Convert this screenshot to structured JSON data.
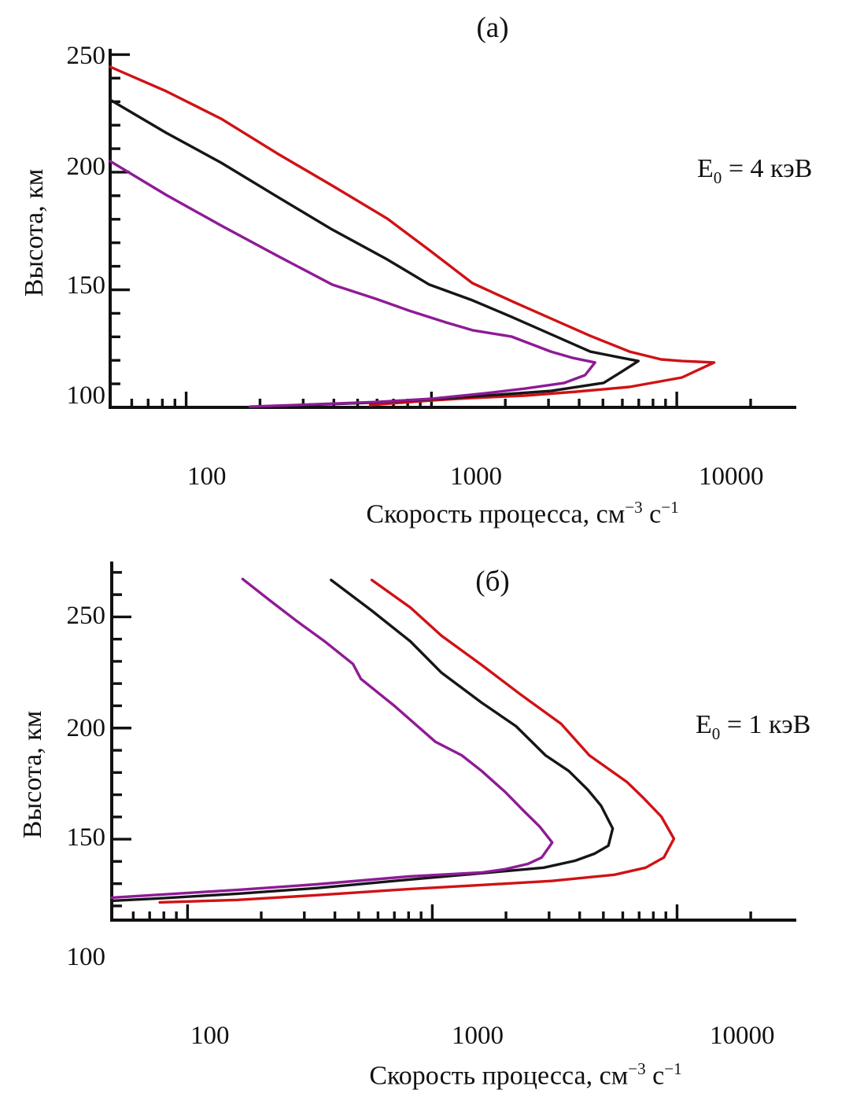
{
  "figure": {
    "background": "#ffffff",
    "axis_color": "#111111",
    "ylabel": "Высота, км",
    "xlabel": {
      "prefix": "Скорость процесса, см",
      "sup1": "−3",
      "mid": " с",
      "sup2": "−1"
    },
    "panels": [
      {
        "id": "a",
        "title": "(а)",
        "annotation": {
          "prefix": "E",
          "sub": "0",
          "rest": " = 4 кэВ"
        },
        "x_tick_labels": [
          "100",
          "1000",
          "10000"
        ],
        "y_tick_labels": [
          "250",
          "200",
          "150",
          "100"
        ]
      },
      {
        "id": "b",
        "title": "(б)",
        "annotation": {
          "prefix": "E",
          "sub": "0",
          "rest": " = 1 кэВ"
        },
        "x_tick_labels": [
          "100",
          "1000",
          "10000"
        ],
        "y_tick_labels": [
          "250",
          "200",
          "150",
          "100"
        ]
      }
    ]
  },
  "chart_data": [
    {
      "type": "line",
      "panel": "(а)",
      "annotation": "E0 = 4 кэВ",
      "xlabel": "Скорость процесса, см−3 с−1",
      "ylabel": "Высота, км",
      "x_scale": "log",
      "xlim": [
        49,
        30700
      ],
      "ylim": [
        100,
        252.5
      ],
      "x_ticks_major": [
        100,
        1000,
        10000
      ],
      "x_ticks_minor": [
        60,
        70,
        80,
        90,
        200,
        300,
        400,
        500,
        600,
        700,
        800,
        900,
        2000,
        3000,
        4000,
        5000,
        6000,
        7000,
        8000,
        9000,
        20000
      ],
      "y_ticks_major": [
        100,
        150,
        200,
        250
      ],
      "y_ticks_minor": [
        110,
        120,
        130,
        140,
        160,
        170,
        180,
        190,
        210,
        220,
        230,
        240
      ],
      "grid": false,
      "legend": "none",
      "series": [
        {
          "name": "red-curve",
          "color": "#d01215",
          "points": [
            [
              49,
              244.8
            ],
            [
              83,
              234.4
            ],
            [
              139,
              222.7
            ],
            [
              235,
              208.0
            ],
            [
              394,
              194.3
            ],
            [
              660,
              180.3
            ],
            [
              980,
              166.9
            ],
            [
              1470,
              152.8
            ],
            [
              2120,
              145.2
            ],
            [
              3070,
              137.8
            ],
            [
              4440,
              130.4
            ],
            [
              6420,
              123.7
            ],
            [
              8630,
              120.4
            ],
            [
              10500,
              119.7
            ],
            [
              14200,
              119.1
            ],
            [
              10500,
              112.7
            ],
            [
              6420,
              108.7
            ],
            [
              3910,
              106.7
            ],
            [
              2410,
              105.0
            ],
            [
              1470,
              104.0
            ],
            [
              1010,
              103.0
            ],
            [
              755,
              102.0
            ],
            [
              563,
              101.0
            ]
          ]
        },
        {
          "name": "black-curve",
          "color": "#161616",
          "points": [
            [
              49,
              230.8
            ],
            [
              83,
              216.7
            ],
            [
              139,
              204.0
            ],
            [
              235,
              189.6
            ],
            [
              394,
              175.6
            ],
            [
              660,
              162.9
            ],
            [
              980,
              152.2
            ],
            [
              1470,
              145.5
            ],
            [
              2120,
              138.5
            ],
            [
              3070,
              131.1
            ],
            [
              4440,
              123.7
            ],
            [
              5950,
              121.1
            ],
            [
              6970,
              119.7
            ],
            [
              5950,
              115.1
            ],
            [
              5030,
              110.4
            ],
            [
              3070,
              107.0
            ],
            [
              1870,
              105.4
            ],
            [
              1090,
              103.7
            ],
            [
              563,
              102.0
            ],
            [
              298,
              101.0
            ]
          ]
        },
        {
          "name": "purple-curve",
          "color": "#8e1b96",
          "points": [
            [
              49,
              204.7
            ],
            [
              83,
              190.3
            ],
            [
              139,
              177.3
            ],
            [
              235,
              164.5
            ],
            [
              394,
              152.2
            ],
            [
              592,
              146.2
            ],
            [
              813,
              141.1
            ],
            [
              1150,
              136.1
            ],
            [
              1470,
              132.8
            ],
            [
              2120,
              130.1
            ],
            [
              3070,
              123.7
            ],
            [
              3740,
              121.1
            ],
            [
              4640,
              119.1
            ],
            [
              4230,
              113.7
            ],
            [
              3480,
              110.4
            ],
            [
              2410,
              108.0
            ],
            [
              1660,
              106.0
            ],
            [
              1010,
              103.7
            ],
            [
              605,
              102.3
            ],
            [
              336,
              101.3
            ],
            [
              182,
              100.3
            ]
          ]
        }
      ]
    },
    {
      "type": "line",
      "panel": "(б)",
      "annotation": "E0 = 1 кэВ",
      "xlabel": "Скорость процесса, см−3 с−1",
      "ylabel": "Высота, км",
      "x_scale": "log",
      "xlim": [
        49,
        30700
      ],
      "ylim": [
        113.6,
        274.9
      ],
      "x_ticks_major": [
        100,
        1000,
        10000
      ],
      "x_ticks_minor": [
        60,
        70,
        80,
        90,
        200,
        300,
        400,
        500,
        600,
        700,
        800,
        900,
        2000,
        3000,
        4000,
        5000,
        6000,
        7000,
        8000,
        9000,
        20000
      ],
      "y_ticks_major": [
        150,
        200,
        250
      ],
      "y_ticks_minor": [
        120,
        130,
        140,
        160,
        170,
        180,
        190,
        210,
        220,
        230,
        240,
        260,
        270
      ],
      "grid": false,
      "legend": "none",
      "series": [
        {
          "name": "red-curve",
          "color": "#d01215",
          "points": [
            [
              566,
              266.6
            ],
            [
              813,
              254.2
            ],
            [
              1090,
              241.5
            ],
            [
              1590,
              228.4
            ],
            [
              2300,
              215.0
            ],
            [
              3360,
              201.9
            ],
            [
              4380,
              187.7
            ],
            [
              6240,
              175.7
            ],
            [
              7280,
              168.6
            ],
            [
              8630,
              160.1
            ],
            [
              9710,
              150.2
            ],
            [
              8840,
              141.8
            ],
            [
              7440,
              137.2
            ],
            [
              5550,
              134.0
            ],
            [
              3070,
              131.2
            ],
            [
              1600,
              129.4
            ],
            [
              813,
              127.6
            ],
            [
              336,
              124.8
            ],
            [
              160,
              122.7
            ],
            [
              77,
              121.6
            ]
          ]
        },
        {
          "name": "black-curve",
          "color": "#161616",
          "points": [
            [
              386,
              266.6
            ],
            [
              566,
              252.8
            ],
            [
              813,
              239.0
            ],
            [
              1090,
              224.9
            ],
            [
              1590,
              211.4
            ],
            [
              2200,
              200.8
            ],
            [
              2900,
              187.7
            ],
            [
              3610,
              180.7
            ],
            [
              4320,
              172.2
            ],
            [
              4890,
              165.1
            ],
            [
              5460,
              154.8
            ],
            [
              5240,
              147.1
            ],
            [
              4600,
              143.5
            ],
            [
              3830,
              140.3
            ],
            [
              2850,
              137.2
            ],
            [
              1600,
              134.7
            ],
            [
              813,
              131.9
            ],
            [
              336,
              128.0
            ],
            [
              160,
              125.5
            ],
            [
              77,
              123.4
            ],
            [
              49,
              122.3
            ]
          ]
        },
        {
          "name": "purple-curve",
          "color": "#8e1b96",
          "points": [
            [
              168,
              267.0
            ],
            [
              217,
              257.4
            ],
            [
              281,
              247.9
            ],
            [
              366,
              238.7
            ],
            [
              474,
              228.8
            ],
            [
              511,
              222.1
            ],
            [
              700,
              210.0
            ],
            [
              1030,
              193.8
            ],
            [
              1320,
              187.7
            ],
            [
              1590,
              180.7
            ],
            [
              1990,
              171.1
            ],
            [
              2370,
              162.6
            ],
            [
              2750,
              155.6
            ],
            [
              3090,
              148.5
            ],
            [
              2800,
              141.8
            ],
            [
              2460,
              138.9
            ],
            [
              1980,
              136.5
            ],
            [
              1590,
              135.0
            ],
            [
              813,
              133.3
            ],
            [
              336,
              129.7
            ],
            [
              160,
              127.2
            ],
            [
              89,
              125.5
            ],
            [
              49,
              123.7
            ]
          ]
        }
      ]
    }
  ]
}
